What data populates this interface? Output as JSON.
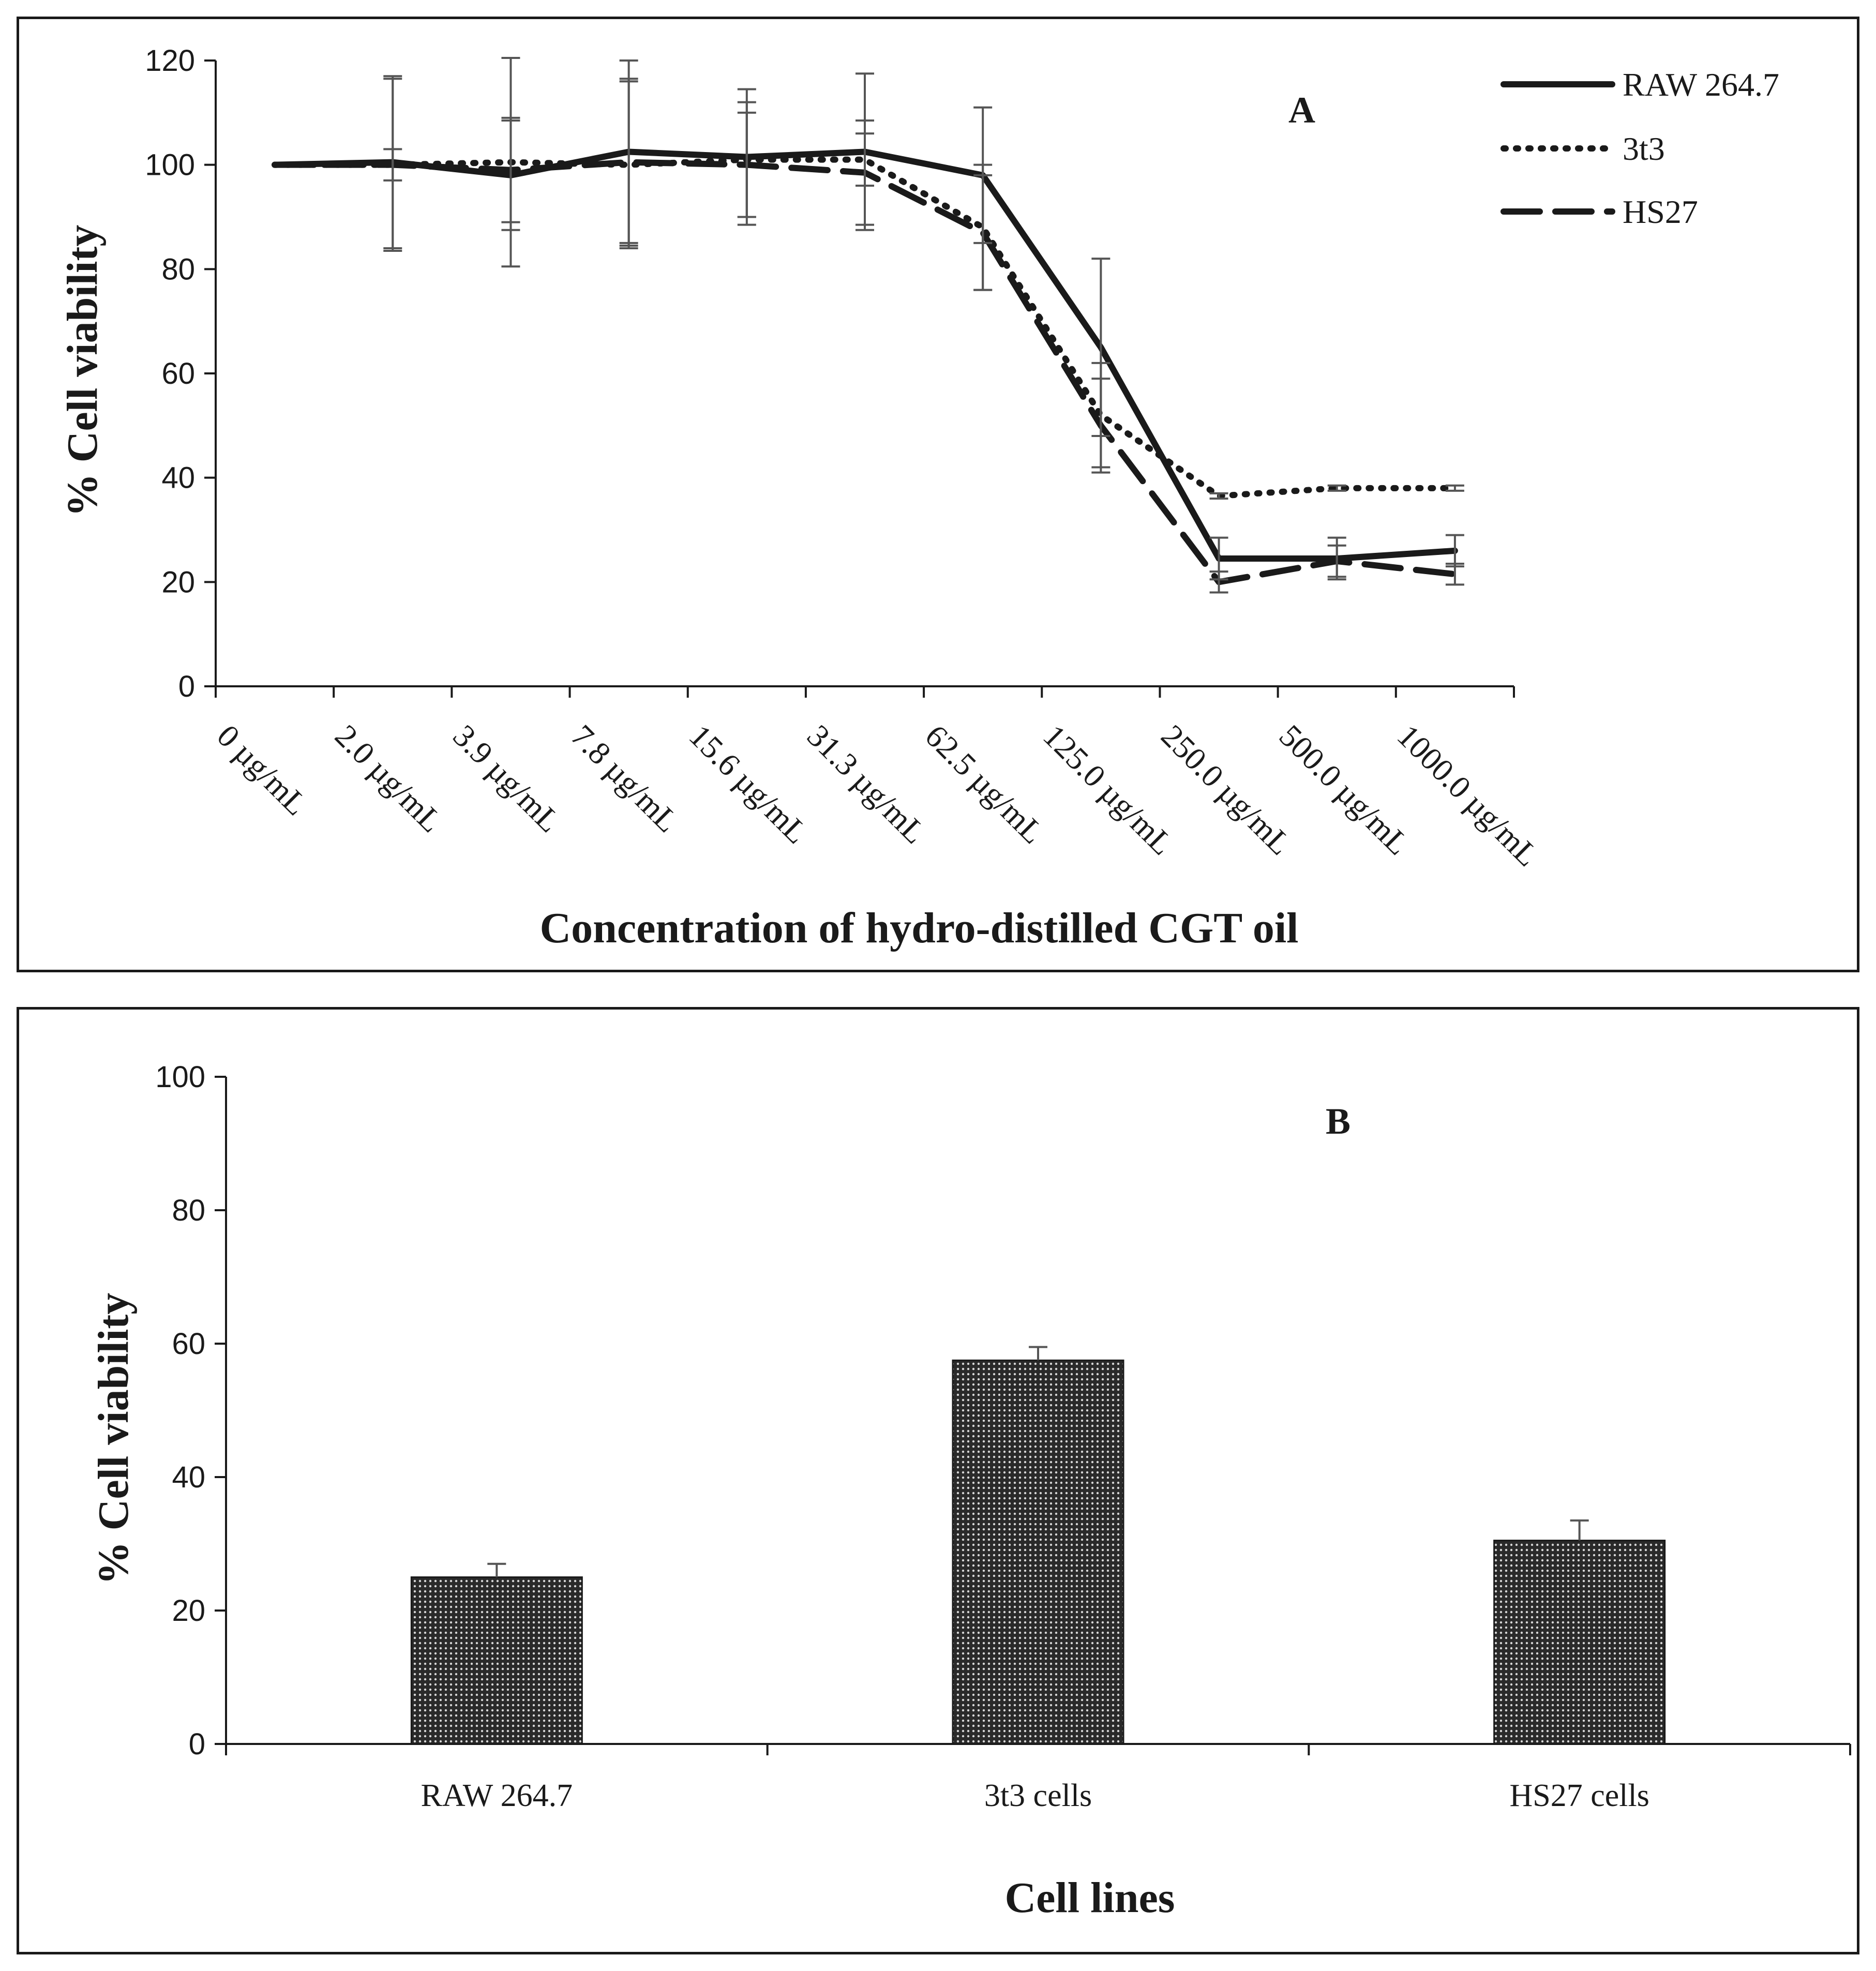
{
  "chart_data": [
    {
      "panel": "A",
      "type": "line",
      "panel_label": "A",
      "xlabel": "Concentration of hydro-distilled CGT oil",
      "ylabel": "% Cell viability",
      "ylim": [
        0,
        120
      ],
      "yticks": [
        "0",
        "20",
        "40",
        "60",
        "80",
        "100",
        "120"
      ],
      "categories": [
        "0 µg/mL",
        "2.0 µg/mL",
        "3.9 µg/mL",
        "7.8 µg/mL",
        "15.6 µg/mL",
        "31.3 µg/mL",
        "62.5 µg/mL",
        "125.0 µg/mL",
        "250.0 µg/mL",
        "500.0 µg/mL",
        "1000.0 µg/mL"
      ],
      "legend_position": "top-right",
      "series": [
        {
          "name": "RAW 264.7",
          "style": "solid",
          "values": [
            100,
            100.5,
            98,
            102.5,
            101.5,
            102.5,
            98,
            65,
            24.5,
            24.5,
            26
          ],
          "errors": [
            0,
            16.5,
            10.5,
            17.5,
            13,
            15,
            13,
            17,
            4,
            4,
            3
          ]
        },
        {
          "name": "3t3",
          "style": "dotted",
          "values": [
            100,
            100,
            100.5,
            100,
            101,
            101,
            88,
            52,
            36.5,
            38,
            38
          ],
          "errors": [
            0,
            16.5,
            20,
            16,
            11,
            5,
            12,
            10,
            0.5,
            0.5,
            0.5
          ]
        },
        {
          "name": "HS27",
          "style": "dashed",
          "values": [
            100,
            100,
            99,
            100.5,
            100,
            98.5,
            87,
            50,
            20,
            24,
            21.5
          ],
          "errors": [
            0,
            3,
            10,
            16,
            10,
            10,
            11,
            9,
            2,
            3,
            2
          ]
        }
      ]
    },
    {
      "panel": "B",
      "type": "bar",
      "panel_label": "B",
      "xlabel": "Cell lines",
      "ylabel": "% Cell viability",
      "ylim": [
        0,
        100
      ],
      "yticks": [
        "0",
        "20",
        "40",
        "60",
        "80",
        "100"
      ],
      "categories": [
        "RAW 264.7",
        "3t3 cells",
        "HS27 cells"
      ],
      "values": [
        25,
        57.5,
        30.5
      ],
      "errors": [
        2,
        2,
        3
      ]
    }
  ],
  "colors": {
    "ink": "#1a1a1a",
    "error_bar": "#555555"
  }
}
